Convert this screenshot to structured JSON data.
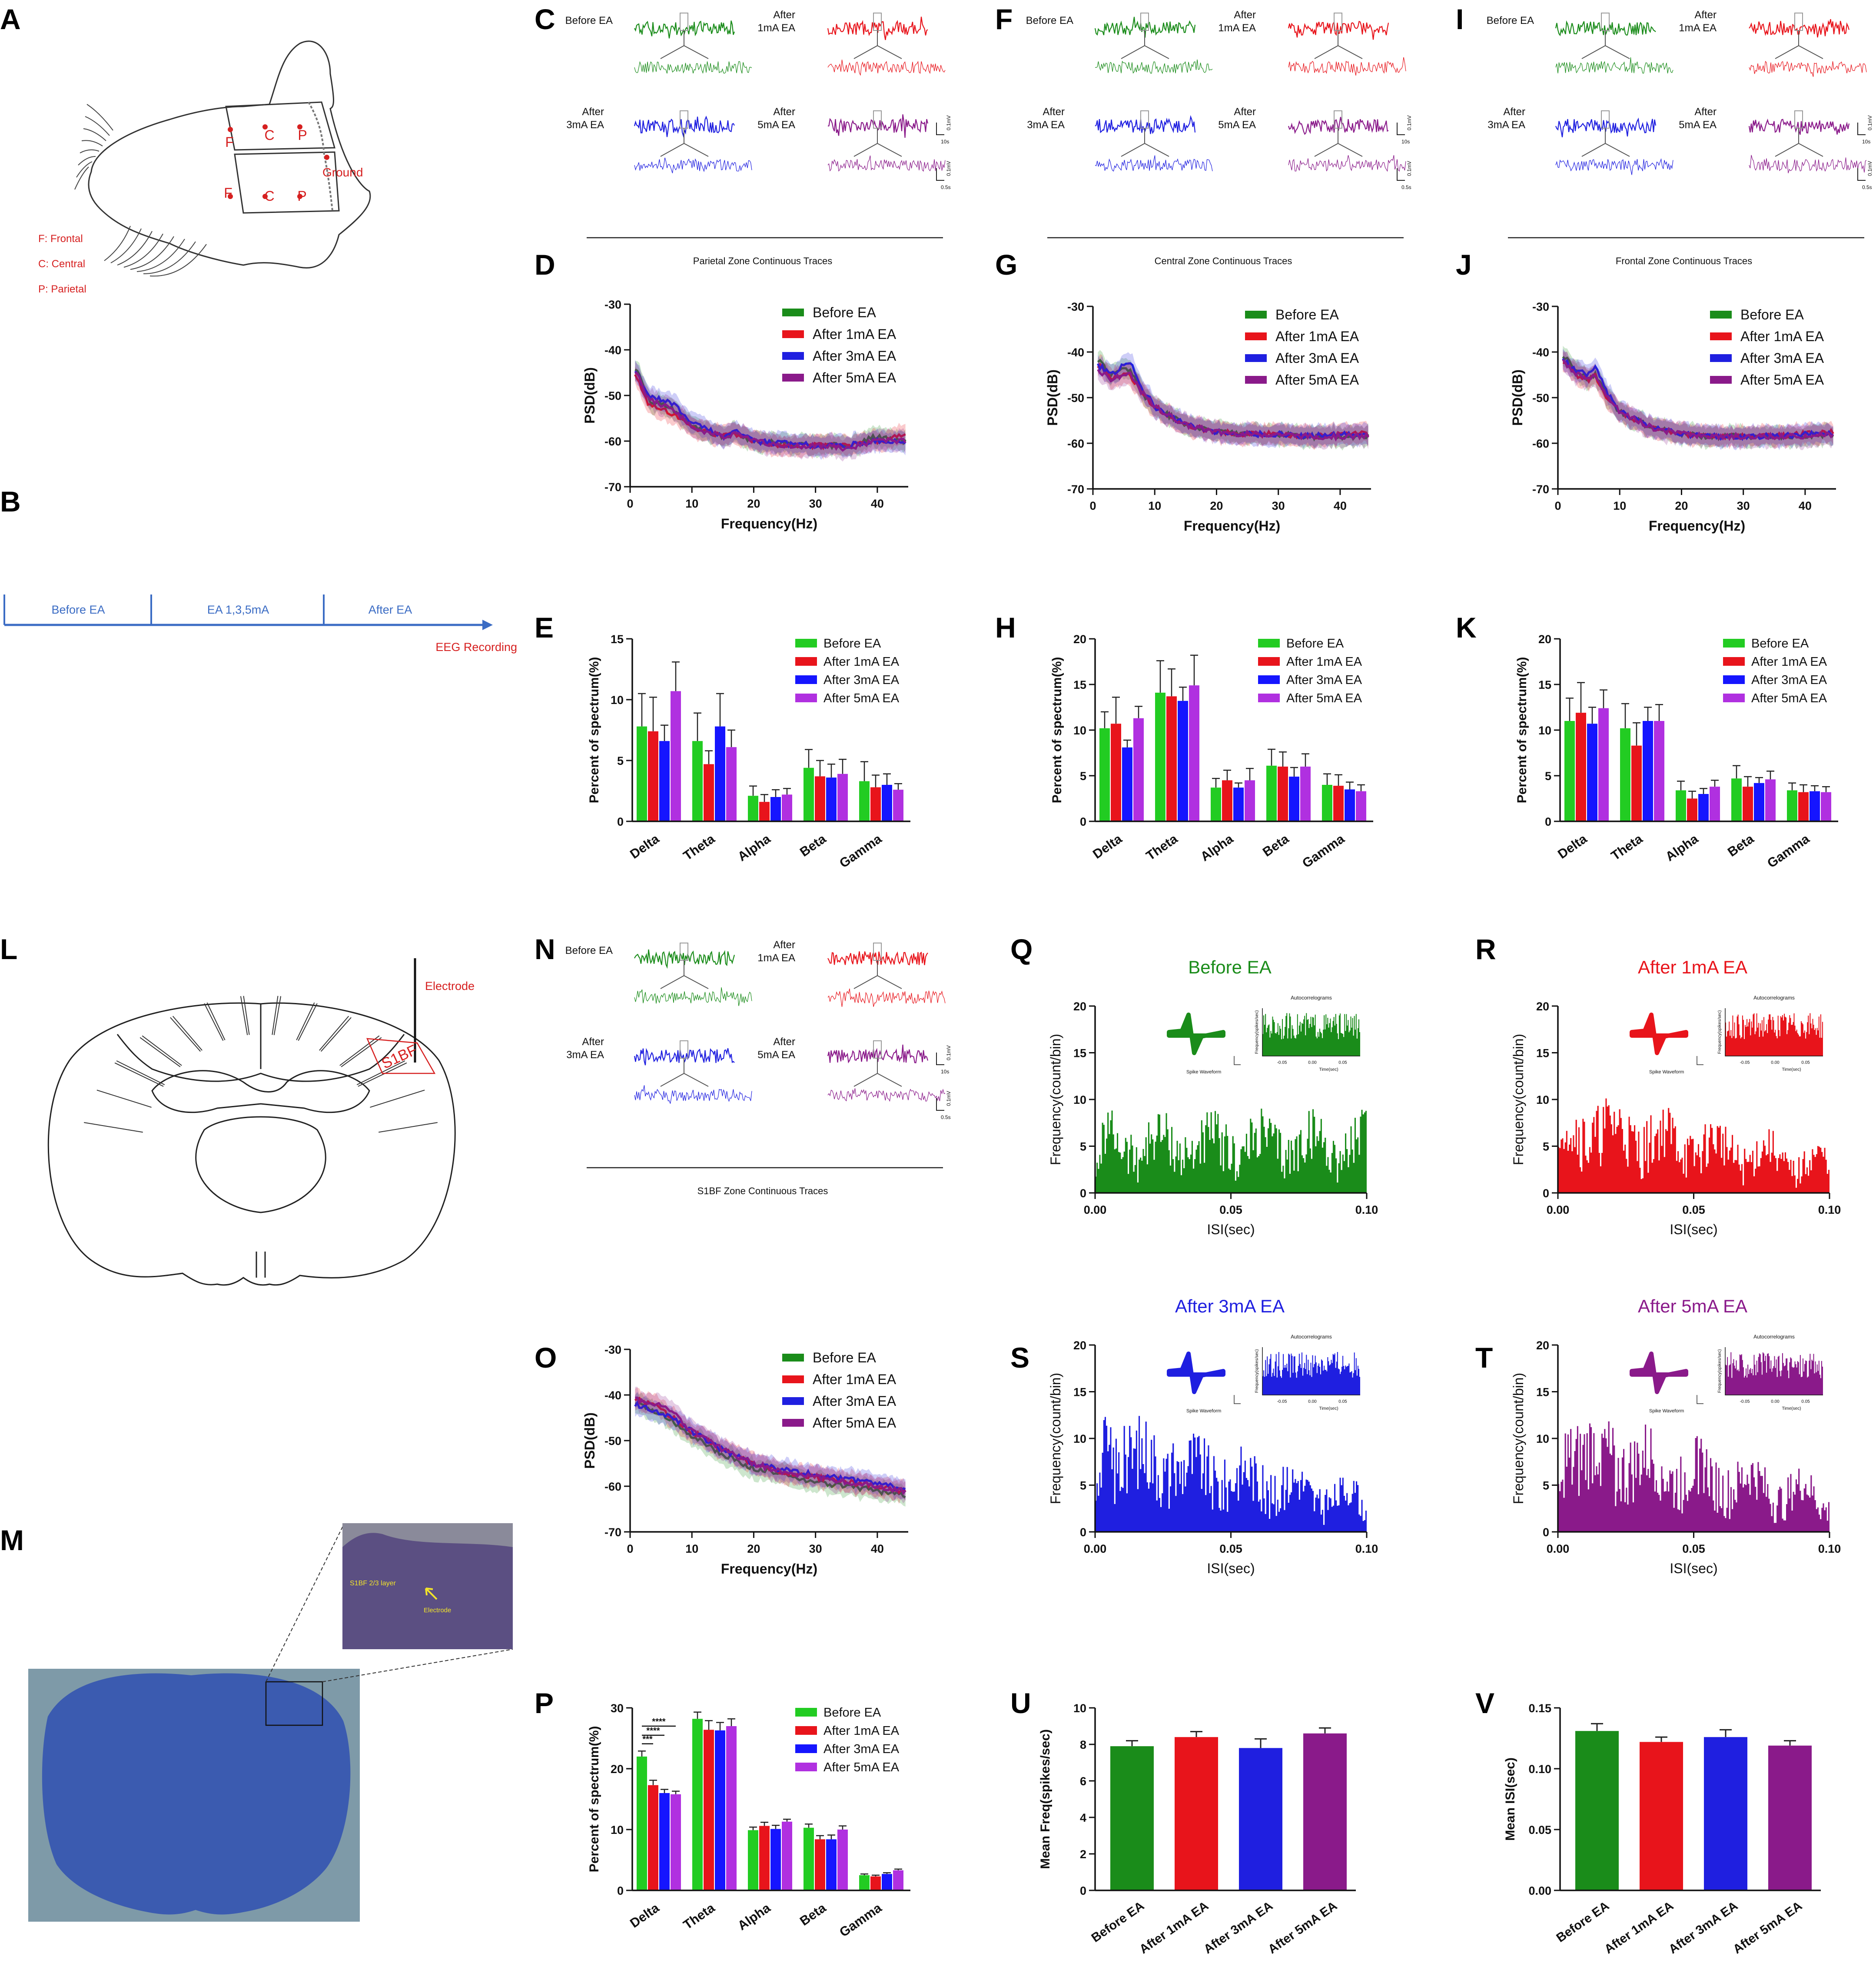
{
  "colors": {
    "before": "#1a8c1a",
    "m1": "#e8141b",
    "m3": "#1f1fe0",
    "m5": "#8a1a8a",
    "pureGreen": "#22cc22",
    "pureBlue": "#1515ff",
    "violet": "#b030e0",
    "label": "#d62020",
    "schem": "#3b6cc4",
    "axis": "#111111"
  },
  "panel_letters": [
    "A",
    "B",
    "C",
    "D",
    "E",
    "F",
    "G",
    "H",
    "I",
    "J",
    "K",
    "L",
    "M",
    "N",
    "O",
    "P",
    "Q",
    "R",
    "S",
    "T",
    "U",
    "V"
  ],
  "panelA": {
    "F": "F",
    "C": "C",
    "P": "P",
    "ground": "Ground",
    "legend": [
      "F: Frontal",
      "C: Central",
      "P: Parietal"
    ]
  },
  "panelB": {
    "phases": [
      "Before EA",
      "EA 1,3,5mA",
      "After EA"
    ],
    "recording": "EEG Recording"
  },
  "trace_labels": {
    "before": "Before EA",
    "m1": [
      "After",
      "1mA EA"
    ],
    "m3": [
      "After",
      "3mA EA"
    ],
    "m5": [
      "After",
      "5mA EA"
    ]
  },
  "trace_panels": [
    {
      "id": "C",
      "caption": "Parietal Zone Continuous Traces"
    },
    {
      "id": "F",
      "caption": "Central Zone Continuous Traces"
    },
    {
      "id": "I",
      "caption": "Frontal Zone Continuous Traces"
    },
    {
      "id": "N",
      "caption": "S1BF Zone Continuous Traces"
    }
  ],
  "scalebar": {
    "amp": "0.1mV",
    "t1": "10s",
    "t2": "0.5s"
  },
  "panelL": {
    "electrode": "Electrode",
    "region": "S1BF"
  },
  "panelM": {
    "layer": "S1BF 2/3 layer",
    "electrode": "Electrode"
  },
  "chart_data": [
    {
      "id": "D",
      "type": "line",
      "title": "",
      "xlabel": "Frequency(Hz)",
      "ylabel": "PSD(dB)",
      "xlim": [
        0,
        45
      ],
      "ylim": [
        -70,
        -30
      ],
      "xticks": [
        "0",
        "10",
        "20",
        "30",
        "40"
      ],
      "yticks": [
        "-70",
        "-60",
        "-50",
        "-40",
        "-30"
      ],
      "legend": [
        "Before EA",
        "After 1mA EA",
        "After 3mA EA",
        "After 5mA EA"
      ],
      "x": [
        1,
        3,
        5,
        7,
        10,
        15,
        17,
        20,
        25,
        30,
        35,
        40,
        44
      ],
      "series": [
        {
          "name": "Before EA",
          "values": [
            -44,
            -51,
            -52,
            -53,
            -57,
            -59,
            -58,
            -60,
            -60.5,
            -61,
            -61,
            -59,
            -60
          ]
        },
        {
          "name": "After 1mA EA",
          "values": [
            -46,
            -52,
            -53,
            -54,
            -57,
            -59,
            -58.5,
            -60,
            -61,
            -61,
            -61,
            -60,
            -59
          ]
        },
        {
          "name": "After 3mA EA",
          "values": [
            -45,
            -50,
            -51,
            -52,
            -56,
            -59,
            -58,
            -60,
            -60.5,
            -61,
            -61,
            -60,
            -60
          ]
        },
        {
          "name": "After 5mA EA",
          "values": [
            -45,
            -51,
            -52,
            -53,
            -57,
            -59,
            -58.5,
            -60,
            -61,
            -61,
            -61.5,
            -60,
            -60
          ]
        }
      ]
    },
    {
      "id": "G",
      "type": "line",
      "title": "",
      "xlabel": "Frequency(Hz)",
      "ylabel": "PSD(dB)",
      "xlim": [
        0,
        45
      ],
      "ylim": [
        -70,
        -30
      ],
      "xticks": [
        "0",
        "10",
        "20",
        "30",
        "40"
      ],
      "yticks": [
        "-70",
        "-60",
        "-50",
        "-40",
        "-30"
      ],
      "legend": [
        "Before EA",
        "After 1mA EA",
        "After 3mA EA",
        "After 5mA EA"
      ],
      "x": [
        1,
        3,
        5,
        6,
        8,
        10,
        15,
        20,
        25,
        30,
        35,
        40,
        44
      ],
      "series": [
        {
          "name": "Before EA",
          "values": [
            -42,
            -45,
            -44,
            -44,
            -49,
            -52,
            -56,
            -57.5,
            -58,
            -58,
            -58.5,
            -58.5,
            -58.5
          ]
        },
        {
          "name": "After 1mA EA",
          "values": [
            -43,
            -46,
            -45,
            -45,
            -49,
            -52,
            -56,
            -57.5,
            -58,
            -58,
            -58.5,
            -58,
            -58
          ]
        },
        {
          "name": "After 3mA EA",
          "values": [
            -43,
            -45,
            -43,
            -42,
            -48,
            -52,
            -56,
            -57.5,
            -58,
            -58,
            -58.5,
            -58,
            -58
          ]
        },
        {
          "name": "After 5mA EA",
          "values": [
            -44,
            -46,
            -45,
            -45,
            -49,
            -52,
            -56,
            -57.5,
            -58,
            -58,
            -58.5,
            -58.5,
            -58.5
          ]
        }
      ]
    },
    {
      "id": "J",
      "type": "line",
      "title": "",
      "xlabel": "Frequency(Hz)",
      "ylabel": "PSD(dB)",
      "xlim": [
        0,
        45
      ],
      "ylim": [
        -70,
        -30
      ],
      "xticks": [
        "0",
        "10",
        "20",
        "30",
        "40"
      ],
      "yticks": [
        "-70",
        "-60",
        "-50",
        "-40",
        "-30"
      ],
      "legend": [
        "Before EA",
        "After 1mA EA",
        "After 3mA EA",
        "After 5mA EA"
      ],
      "x": [
        1,
        3,
        5,
        6,
        8,
        10,
        15,
        20,
        25,
        30,
        35,
        40,
        44
      ],
      "series": [
        {
          "name": "Before EA",
          "values": [
            -41,
            -44,
            -46,
            -45,
            -50,
            -53,
            -56.5,
            -58,
            -58.5,
            -58.5,
            -58.5,
            -58.5,
            -58
          ]
        },
        {
          "name": "After 1mA EA",
          "values": [
            -42,
            -45,
            -46,
            -45,
            -50,
            -53,
            -56.5,
            -58,
            -58.5,
            -58.5,
            -58.5,
            -58,
            -57.5
          ]
        },
        {
          "name": "After 3mA EA",
          "values": [
            -42,
            -44,
            -45,
            -43,
            -49,
            -53,
            -56.5,
            -58,
            -58.5,
            -58.5,
            -58.5,
            -58,
            -58
          ]
        },
        {
          "name": "After 5mA EA",
          "values": [
            -42,
            -45,
            -46,
            -45,
            -50,
            -53,
            -56.5,
            -58,
            -58.5,
            -58.5,
            -58.5,
            -58.5,
            -58
          ]
        }
      ]
    },
    {
      "id": "O",
      "type": "line",
      "title": "",
      "xlabel": "Frequency(Hz)",
      "ylabel": "PSD(dB)",
      "xlim": [
        0,
        45
      ],
      "ylim": [
        -70,
        -30
      ],
      "xticks": [
        "0",
        "10",
        "20",
        "30",
        "40"
      ],
      "yticks": [
        "-70",
        "-60",
        "-50",
        "-40",
        "-30"
      ],
      "legend": [
        "Before EA",
        "After 1mA EA",
        "After 3mA EA",
        "After 5mA EA"
      ],
      "x": [
        1,
        3,
        5,
        7,
        10,
        15,
        20,
        25,
        30,
        35,
        40,
        44
      ],
      "series": [
        {
          "name": "Before EA",
          "values": [
            -42,
            -43,
            -44,
            -46,
            -49,
            -53,
            -56,
            -57.5,
            -59,
            -60,
            -61,
            -62
          ]
        },
        {
          "name": "After 1mA EA",
          "values": [
            -41,
            -42,
            -43,
            -45,
            -48,
            -52,
            -55,
            -57,
            -58,
            -59,
            -60,
            -61
          ]
        },
        {
          "name": "After 3mA EA",
          "values": [
            -42,
            -43,
            -44,
            -45,
            -48,
            -52,
            -55,
            -56.5,
            -57.5,
            -58.5,
            -59.5,
            -60.5
          ]
        },
        {
          "name": "After 5mA EA",
          "values": [
            -41,
            -42,
            -42,
            -44,
            -48,
            -52,
            -55,
            -57,
            -58,
            -59,
            -60,
            -61
          ]
        }
      ]
    },
    {
      "id": "E",
      "type": "bar",
      "xlabel": "",
      "ylabel": "Percent of spectrum(%)",
      "ylim": [
        0,
        15
      ],
      "yticks": [
        "0",
        "5",
        "10",
        "15"
      ],
      "categories": [
        "Delta",
        "Theta",
        "Alpha",
        "Beta",
        "Gamma"
      ],
      "legend": [
        "Before EA",
        "After 1mA EA",
        "After 3mA EA",
        "After 5mA EA"
      ],
      "series": [
        {
          "name": "Before EA",
          "values": [
            7.8,
            6.6,
            2.1,
            4.4,
            3.3
          ]
        },
        {
          "name": "After 1mA EA",
          "values": [
            7.4,
            4.7,
            1.6,
            3.7,
            2.8
          ]
        },
        {
          "name": "After 3mA EA",
          "values": [
            6.6,
            7.8,
            2.0,
            3.6,
            3.0
          ]
        },
        {
          "name": "After 5mA EA",
          "values": [
            10.7,
            6.1,
            2.2,
            3.9,
            2.6
          ]
        }
      ],
      "errors": [
        [
          2.7,
          2.3,
          0.8,
          1.5,
          1.6
        ],
        [
          2.8,
          1.1,
          0.6,
          1.3,
          1.0
        ],
        [
          1.3,
          2.7,
          0.6,
          1.1,
          0.9
        ],
        [
          2.4,
          1.4,
          0.5,
          1.2,
          0.5
        ]
      ]
    },
    {
      "id": "H",
      "type": "bar",
      "xlabel": "",
      "ylabel": "Percent of spectrum(%)",
      "ylim": [
        0,
        20
      ],
      "yticks": [
        "0",
        "5",
        "10",
        "15",
        "20"
      ],
      "categories": [
        "Delta",
        "Theta",
        "Alpha",
        "Beta",
        "Gamma"
      ],
      "legend": [
        "Before EA",
        "After 1mA EA",
        "After 3mA EA",
        "After 5mA EA"
      ],
      "series": [
        {
          "name": "Before EA",
          "values": [
            10.2,
            14.1,
            3.7,
            6.1,
            4.0
          ]
        },
        {
          "name": "After 1mA EA",
          "values": [
            10.7,
            13.7,
            4.5,
            6.0,
            3.9
          ]
        },
        {
          "name": "After 3mA EA",
          "values": [
            8.1,
            13.2,
            3.7,
            4.9,
            3.5
          ]
        },
        {
          "name": "After 5mA EA",
          "values": [
            11.3,
            14.9,
            4.5,
            6.0,
            3.3
          ]
        }
      ],
      "errors": [
        [
          1.8,
          3.5,
          1.0,
          1.8,
          1.2
        ],
        [
          2.9,
          3.0,
          1.1,
          1.6,
          1.2
        ],
        [
          0.8,
          1.5,
          0.5,
          1.0,
          0.8
        ],
        [
          1.3,
          3.3,
          1.3,
          1.4,
          0.7
        ]
      ]
    },
    {
      "id": "K",
      "type": "bar",
      "xlabel": "",
      "ylabel": "Percent of spectrum(%)",
      "ylim": [
        0,
        20
      ],
      "yticks": [
        "0",
        "5",
        "10",
        "15",
        "20"
      ],
      "categories": [
        "Delta",
        "Theta",
        "Alpha",
        "Beta",
        "Gamma"
      ],
      "legend": [
        "Before EA",
        "After 1mA EA",
        "After 3mA EA",
        "After 5mA EA"
      ],
      "series": [
        {
          "name": "Before EA",
          "values": [
            11.0,
            10.2,
            3.4,
            4.7,
            3.4
          ]
        },
        {
          "name": "After 1mA EA",
          "values": [
            11.9,
            8.3,
            2.5,
            3.8,
            3.2
          ]
        },
        {
          "name": "After 3mA EA",
          "values": [
            10.7,
            11.0,
            3.0,
            4.2,
            3.3
          ]
        },
        {
          "name": "After 5mA EA",
          "values": [
            12.4,
            11.0,
            3.8,
            4.6,
            3.2
          ]
        }
      ],
      "errors": [
        [
          2.5,
          2.7,
          1.0,
          1.4,
          0.8
        ],
        [
          3.3,
          2.5,
          0.8,
          1.1,
          0.8
        ],
        [
          1.8,
          1.5,
          0.6,
          0.6,
          0.6
        ],
        [
          2.0,
          1.8,
          0.7,
          0.9,
          0.6
        ]
      ]
    },
    {
      "id": "P",
      "type": "bar",
      "xlabel": "",
      "ylabel": "Percent of spectrum(%)",
      "ylim": [
        0,
        30
      ],
      "yticks": [
        "0",
        "10",
        "20",
        "30"
      ],
      "categories": [
        "Delta",
        "Theta",
        "Alpha",
        "Beta",
        "Gamma"
      ],
      "legend": [
        "Before EA",
        "After 1mA EA",
        "After 3mA EA",
        "After 5mA EA"
      ],
      "series": [
        {
          "name": "Before EA",
          "values": [
            22.0,
            28.2,
            9.9,
            10.3,
            2.5
          ]
        },
        {
          "name": "After 1mA EA",
          "values": [
            17.3,
            26.4,
            10.6,
            8.4,
            2.3
          ]
        },
        {
          "name": "After 3mA EA",
          "values": [
            16.0,
            26.3,
            10.1,
            8.4,
            2.7
          ]
        },
        {
          "name": "After 5mA EA",
          "values": [
            15.8,
            27.0,
            11.3,
            10.0,
            3.3
          ]
        }
      ],
      "errors": [
        [
          0.9,
          1.1,
          0.5,
          0.6,
          0.2
        ],
        [
          0.8,
          1.5,
          0.6,
          0.6,
          0.2
        ],
        [
          0.6,
          1.3,
          0.6,
          0.7,
          0.2
        ],
        [
          0.5,
          1.2,
          0.4,
          0.6,
          0.2
        ]
      ],
      "significance": [
        "****",
        "****",
        "***"
      ]
    },
    {
      "id": "U",
      "type": "bar",
      "xlabel": "",
      "ylabel": "Mean Freq(spikes/sec)",
      "ylim": [
        0,
        10
      ],
      "yticks": [
        "0",
        "2",
        "4",
        "6",
        "8",
        "10"
      ],
      "categories": [
        "Before EA",
        "After 1mA EA",
        "After 3mA EA",
        "After 5mA EA"
      ],
      "values": [
        7.9,
        8.4,
        7.8,
        8.6
      ],
      "errors": [
        0.3,
        0.3,
        0.5,
        0.3
      ]
    },
    {
      "id": "V",
      "type": "bar",
      "xlabel": "",
      "ylabel": "Mean ISI(sec)",
      "ylim": [
        0,
        0.15
      ],
      "yticks": [
        "0.00",
        "0.05",
        "0.10",
        "0.15"
      ],
      "categories": [
        "Before EA",
        "After 1mA EA",
        "After 3mA EA",
        "After 5mA EA"
      ],
      "values": [
        0.131,
        0.122,
        0.126,
        0.119
      ],
      "errors": [
        0.006,
        0.004,
        0.006,
        0.004
      ]
    },
    {
      "id": "Q",
      "type": "area",
      "title": "Before EA",
      "xlabel": "ISI(sec)",
      "ylabel": "Frequency(count/bin)",
      "xlim": [
        0,
        0.1
      ],
      "ylim": [
        0,
        20
      ],
      "xticks": [
        "0.00",
        "0.05",
        "0.10"
      ],
      "yticks": [
        "0",
        "5",
        "10",
        "15",
        "20"
      ],
      "mean_count": 5,
      "inset": {
        "title": "Autocorrelograms",
        "ylabel": "Frequency(spikes/sec)",
        "xlabel": "Time(sec)",
        "xticks": [
          "-0.05",
          "0.00",
          "0.05"
        ],
        "waveform": "Spike Waveform"
      }
    },
    {
      "id": "R",
      "type": "area",
      "title": "After 1mA EA",
      "xlabel": "ISI(sec)",
      "ylabel": "Frequency(count/bin)",
      "xlim": [
        0,
        0.1
      ],
      "ylim": [
        0,
        20
      ],
      "xticks": [
        "0.00",
        "0.05",
        "0.10"
      ],
      "yticks": [
        "0",
        "5",
        "10",
        "15",
        "20"
      ],
      "mean_count": 5,
      "inset": {
        "title": "Autocorrelograms",
        "ylabel": "Frequency(spikes/sec)",
        "xlabel": "Time(sec)",
        "xticks": [
          "-0.05",
          "0.00",
          "0.05"
        ],
        "waveform": "Spike Waveform"
      }
    },
    {
      "id": "S",
      "type": "area",
      "title": "After 3mA EA",
      "xlabel": "ISI(sec)",
      "ylabel": "Frequency(count/bin)",
      "xlim": [
        0,
        0.1
      ],
      "ylim": [
        0,
        20
      ],
      "xticks": [
        "0.00",
        "0.05",
        "0.10"
      ],
      "yticks": [
        "0",
        "5",
        "10",
        "15",
        "20"
      ],
      "mean_count": 6,
      "inset": {
        "title": "Autocorrelograms",
        "ylabel": "Frequency(spikes/sec)",
        "xlabel": "Time(sec)",
        "xticks": [
          "-0.05",
          "0.00",
          "0.05"
        ],
        "waveform": "Spike Waveform"
      }
    },
    {
      "id": "T",
      "type": "area",
      "title": "After 5mA EA",
      "xlabel": "ISI(sec)",
      "ylabel": "Frequency(count/bin)",
      "xlim": [
        0,
        0.1
      ],
      "ylim": [
        0,
        20
      ],
      "xticks": [
        "0.00",
        "0.05",
        "0.10"
      ],
      "yticks": [
        "0",
        "5",
        "10",
        "15",
        "20"
      ],
      "mean_count": 6,
      "inset": {
        "title": "Autocorrelograms",
        "ylabel": "Frequency(spikes/sec)",
        "xlabel": "Time(sec)",
        "xticks": [
          "-0.05",
          "0.00",
          "0.05"
        ],
        "waveform": "Spike Waveform"
      }
    }
  ]
}
